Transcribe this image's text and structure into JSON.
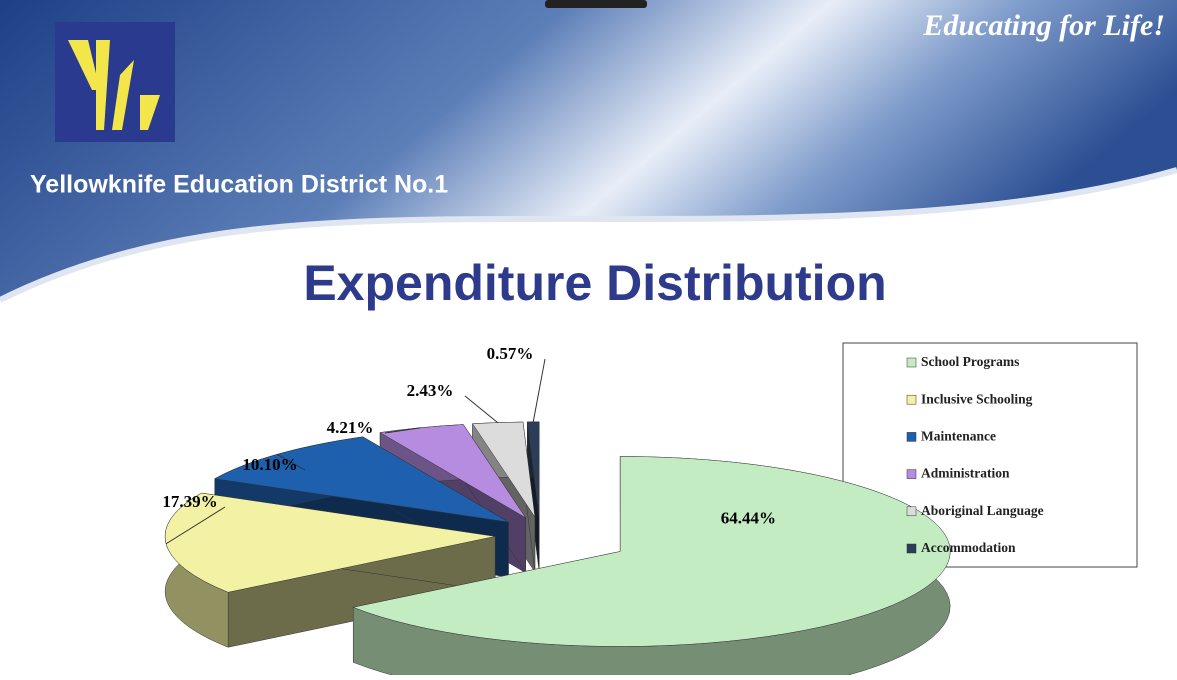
{
  "header": {
    "tagline": "Educating for Life!",
    "organization": "Yellowknife Education District No.1"
  },
  "chart_data": {
    "type": "pie",
    "title": "Expenditure Distribution",
    "categories": [
      "School Programs",
      "Inclusive Schooling",
      "Maintenance",
      "Administration",
      "Aboriginal Language",
      "Accommodation"
    ],
    "values": [
      64.44,
      17.39,
      10.1,
      4.21,
      2.43,
      0.57
    ],
    "value_labels": [
      "64.44%",
      "17.39%",
      "10.10%",
      "4.21%",
      "2.43%",
      "0.57%"
    ],
    "colors": [
      "#c4ecc2",
      "#f3f1a4",
      "#1e5fae",
      "#b58ce0",
      "#dcdcdc",
      "#2b3d58"
    ],
    "legend": "right"
  }
}
